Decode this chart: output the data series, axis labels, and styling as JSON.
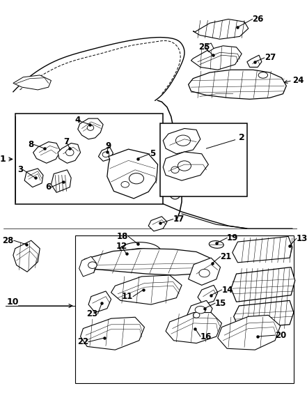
{
  "bg_color": "#ffffff",
  "line_color": "#000000",
  "figsize": [
    4.41,
    5.67
  ],
  "dpi": 100
}
